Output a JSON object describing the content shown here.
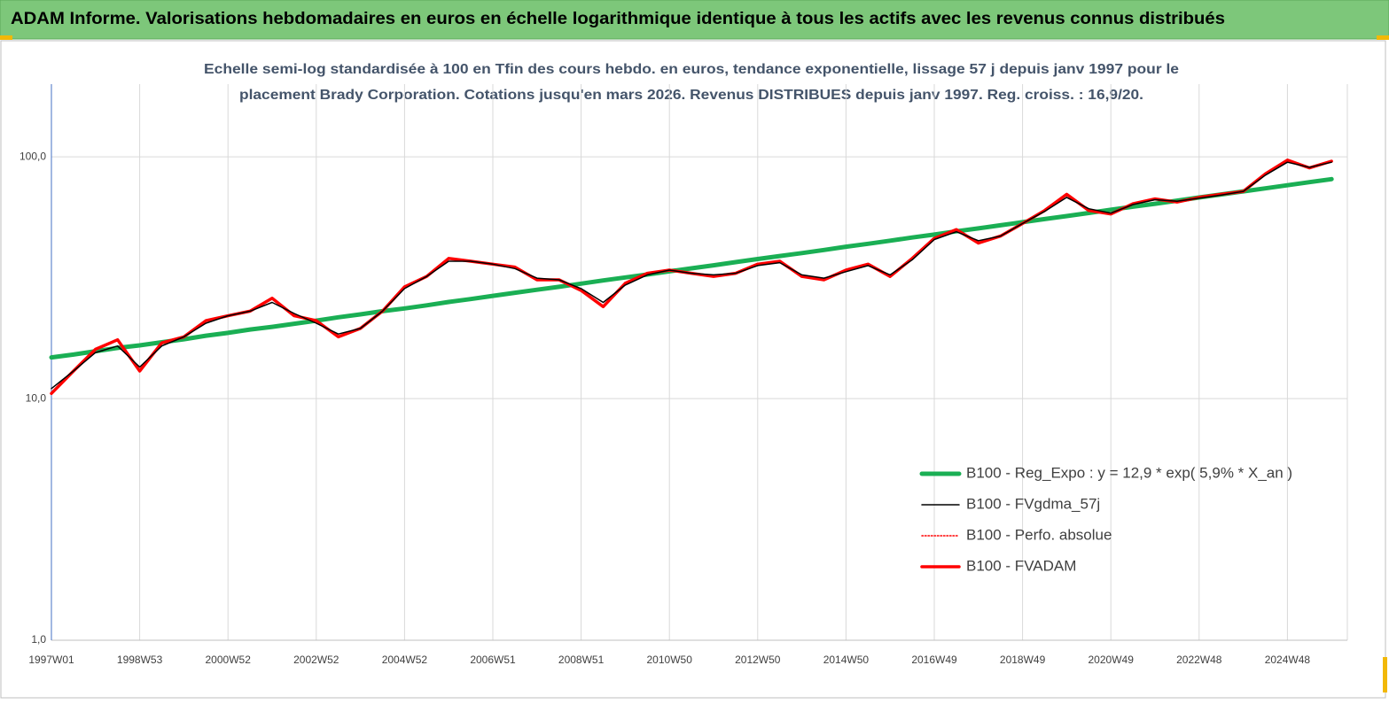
{
  "chart_data": {
    "type": "line",
    "title": "ADAM Informe. Valorisations hebdomadaires en euros en échelle logarithmique identique à tous les actifs avec les revenus connus distribués",
    "subtitle": [
      "Echelle semi-log standardisée à 100 en Tfin des cours hebdo. en euros, tendance exponentielle, lissage 57 j depuis janv 1997 pour le",
      "placement Brady Corporation. Cotations jusqu'en mars 2026. Revenus DISTRIBUES depuis janv 1997. Reg. croiss. : 16,9/20."
    ],
    "categories": [
      "1997W01",
      null,
      null,
      null,
      "1998W53",
      null,
      null,
      null,
      "2000W52",
      null,
      null,
      null,
      "2002W52",
      null,
      null,
      null,
      "2004W52",
      null,
      null,
      null,
      "2006W51",
      null,
      null,
      null,
      "2008W51",
      null,
      null,
      null,
      "2010W50",
      null,
      null,
      null,
      "2012W50",
      null,
      null,
      null,
      "2014W50",
      null,
      null,
      null,
      "2016W49",
      null,
      null,
      null,
      "2018W49",
      null,
      null,
      null,
      "2020W49",
      null,
      null,
      null,
      "2022W48",
      null,
      null,
      null,
      "2024W48",
      null,
      null
    ],
    "log_scale": true,
    "grid": true,
    "legend": "lower right",
    "ylim": [
      1,
      200
    ],
    "yticks": [
      {
        "value": 1,
        "label": "1,0"
      },
      {
        "value": 10,
        "label": "10,0"
      },
      {
        "value": 100,
        "label": "100,0"
      }
    ],
    "series": [
      {
        "name": "B100 - Reg_Expo : y = 12,9 * exp( 5,9% *  X_an )",
        "color": "#1aaf54",
        "values": [
          14.8,
          15.2,
          15.7,
          16.2,
          16.6,
          17.1,
          17.6,
          18.2,
          18.7,
          19.3,
          19.8,
          20.4,
          21.0,
          21.7,
          22.3,
          23.0,
          23.6,
          24.3,
          25.1,
          25.8,
          26.6,
          27.4,
          28.2,
          29.0,
          29.9,
          30.8,
          31.7,
          32.6,
          33.6,
          34.6,
          35.6,
          36.7,
          37.8,
          38.9,
          40.0,
          41.2,
          42.5,
          43.7,
          45.0,
          46.4,
          47.7,
          49.2,
          50.6,
          52.1,
          53.7,
          55.3,
          56.9,
          58.6,
          60.4,
          62.2,
          64.0,
          65.9,
          67.9,
          69.9,
          72.0,
          74.1,
          76.3,
          78.6,
          80.9
        ]
      },
      {
        "name": "B100 - FVgdma_57j",
        "color": "#000000",
        "values": [
          11,
          13,
          15.5,
          16.5,
          13.5,
          16.5,
          18,
          20.5,
          22,
          23,
          25,
          22.5,
          20.5,
          18.5,
          19.5,
          23,
          28.5,
          32,
          37,
          37,
          36,
          34.5,
          31.5,
          31,
          28.5,
          25,
          29.5,
          32.5,
          34,
          33,
          32.5,
          33,
          35.5,
          36.5,
          32.5,
          31.5,
          33.5,
          35.5,
          32.5,
          37.5,
          45.5,
          49,
          45,
          47,
          53,
          59.5,
          68,
          61,
          58.5,
          63.5,
          66.5,
          65.5,
          67.5,
          69.5,
          72,
          84,
          95,
          90.5,
          95
        ]
      },
      {
        "name": "B100 - Perfo. absolue",
        "color": "#ff0000",
        "dotted": true,
        "values": [
          10.5,
          13,
          16,
          17.5,
          13,
          17,
          18,
          21,
          22,
          23,
          26,
          22,
          21,
          18,
          19.5,
          23,
          29,
          32,
          38,
          37,
          36,
          35,
          31,
          31,
          28,
          24,
          30,
          33,
          34,
          33,
          32,
          33,
          36,
          37,
          32,
          31,
          34,
          36,
          32,
          38,
          46,
          50,
          44,
          47,
          53,
          60,
          70,
          60,
          58,
          64,
          67,
          65,
          68,
          70,
          72,
          85,
          97,
          90,
          96
        ]
      },
      {
        "name": "B100 - FVADAM",
        "color": "#ff0000",
        "values": [
          10.5,
          13,
          16,
          17.5,
          13,
          17,
          18,
          21,
          22,
          23,
          26,
          22,
          21,
          18,
          19.5,
          23,
          29,
          32,
          38,
          37,
          36,
          35,
          31,
          31,
          28,
          24,
          30,
          33,
          34,
          33,
          32,
          33,
          36,
          37,
          32,
          31,
          34,
          36,
          32,
          38,
          46,
          50,
          44,
          47,
          53,
          60,
          70,
          60,
          58,
          64,
          67,
          65,
          68,
          70,
          72,
          85,
          97,
          90,
          96
        ]
      }
    ]
  }
}
